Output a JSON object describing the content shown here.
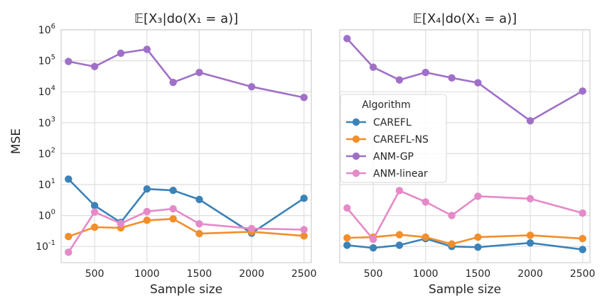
{
  "figure": {
    "ylabel": "MSE"
  },
  "legend": {
    "title": "Algorithm",
    "placement": "center-left of right panel",
    "items": [
      {
        "label": "CAREFL",
        "color": "#3b82b8"
      },
      {
        "label": "CAREFL-NS",
        "color": "#f28e2b"
      },
      {
        "label": "ANM-GP",
        "color": "#a070c8"
      },
      {
        "label": "ANM-linear",
        "color": "#e58ac8"
      }
    ]
  },
  "chart_data": [
    {
      "type": "line",
      "title": "𝔼[X₃|do(X₁ = a)]",
      "xlabel": "Sample size",
      "ylabel": "MSE",
      "yscale": "log",
      "xlim": [
        180,
        2570
      ],
      "ylim": [
        0.03,
        1000000
      ],
      "xticks": [
        500,
        1000,
        1500,
        2000,
        2500
      ],
      "yticks": [
        {
          "exp": -1,
          "label": "10",
          "sup": "-1"
        },
        {
          "exp": 0,
          "label": "10",
          "sup": "0"
        },
        {
          "exp": 1,
          "label": "10",
          "sup": "1"
        },
        {
          "exp": 2,
          "label": "10",
          "sup": "2"
        },
        {
          "exp": 3,
          "label": "10",
          "sup": "3"
        },
        {
          "exp": 4,
          "label": "10",
          "sup": "4"
        },
        {
          "exp": 5,
          "label": "10",
          "sup": "5"
        },
        {
          "exp": 6,
          "label": "10",
          "sup": "6"
        }
      ],
      "x": [
        250,
        500,
        750,
        1000,
        1250,
        1500,
        2000,
        2500
      ],
      "series": [
        {
          "name": "CAREFL",
          "color": "#3b82b8",
          "values": [
            15,
            2.1,
            0.6,
            7.2,
            6.5,
            3.3,
            0.27,
            3.6
          ]
        },
        {
          "name": "CAREFL-NS",
          "color": "#f28e2b",
          "values": [
            0.21,
            0.42,
            0.4,
            0.7,
            0.78,
            0.26,
            0.3,
            0.22
          ]
        },
        {
          "name": "ANM-GP",
          "color": "#a070c8",
          "values": [
            95000,
            65000,
            175000,
            235000,
            20000,
            42000,
            14500,
            6500
          ]
        },
        {
          "name": "ANM-linear",
          "color": "#e58ac8",
          "values": [
            0.065,
            1.3,
            0.55,
            1.35,
            1.65,
            0.54,
            0.38,
            0.35
          ]
        }
      ]
    },
    {
      "type": "line",
      "title": "𝔼[X₄|do(X₁ = a)]",
      "xlabel": "Sample size",
      "ylabel": "MSE",
      "yscale": "log",
      "sharey": true,
      "xlim": [
        180,
        2570
      ],
      "ylim": [
        0.03,
        1000000
      ],
      "xticks": [
        500,
        1000,
        1500,
        2000,
        2500
      ],
      "x": [
        250,
        500,
        750,
        1000,
        1250,
        1500,
        2000,
        2500
      ],
      "series": [
        {
          "name": "CAREFL",
          "color": "#3b82b8",
          "values": [
            0.11,
            0.09,
            0.11,
            0.18,
            0.1,
            0.095,
            0.13,
            0.08
          ]
        },
        {
          "name": "CAREFL-NS",
          "color": "#f28e2b",
          "values": [
            0.19,
            0.2,
            0.24,
            0.2,
            0.12,
            0.2,
            0.23,
            0.18
          ]
        },
        {
          "name": "ANM-GP",
          "color": "#a070c8",
          "values": [
            520000,
            62000,
            24000,
            42000,
            28000,
            19500,
            1150,
            10500
          ]
        },
        {
          "name": "ANM-linear",
          "color": "#e58ac8",
          "values": [
            1.75,
            0.17,
            6.4,
            2.75,
            1.0,
            4.2,
            3.5,
            1.2
          ]
        }
      ]
    }
  ]
}
